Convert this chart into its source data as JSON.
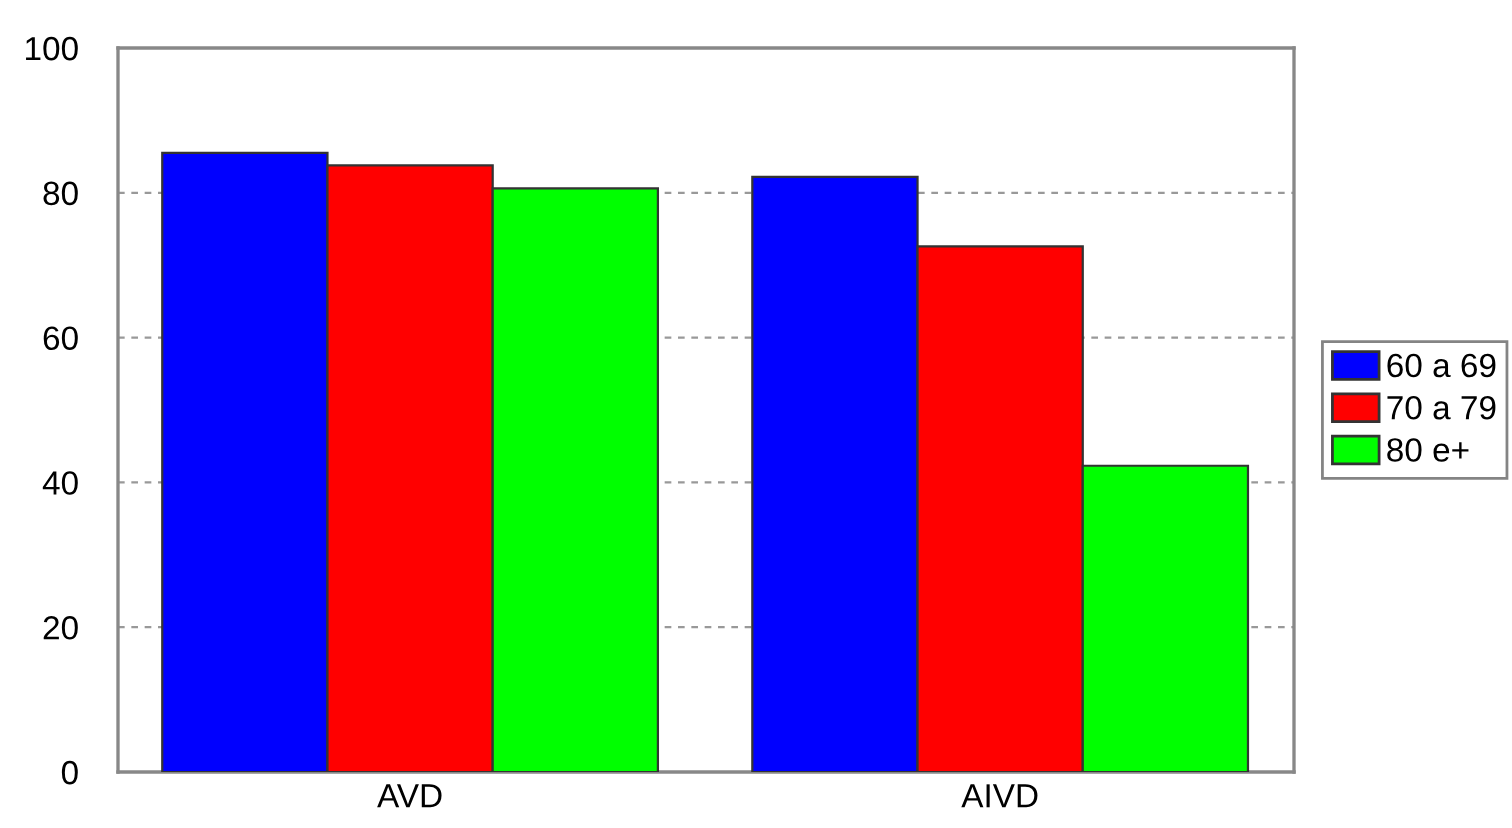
{
  "chart_data": {
    "type": "bar",
    "categories": [
      "AVD",
      "AIVD"
    ],
    "series": [
      {
        "name": "60 a 69",
        "color": "#0000ff",
        "values": [
          85.5,
          82.2
        ]
      },
      {
        "name": "70 a 79",
        "color": "#ff0000",
        "values": [
          83.8,
          72.6
        ]
      },
      {
        "name": "80 e+",
        "color": "#00ff00",
        "values": [
          80.6,
          42.3
        ]
      }
    ],
    "ylim": [
      0,
      100
    ],
    "yticks": [
      0,
      20,
      40,
      60,
      80,
      100
    ],
    "grid": "y",
    "legend": "right"
  }
}
